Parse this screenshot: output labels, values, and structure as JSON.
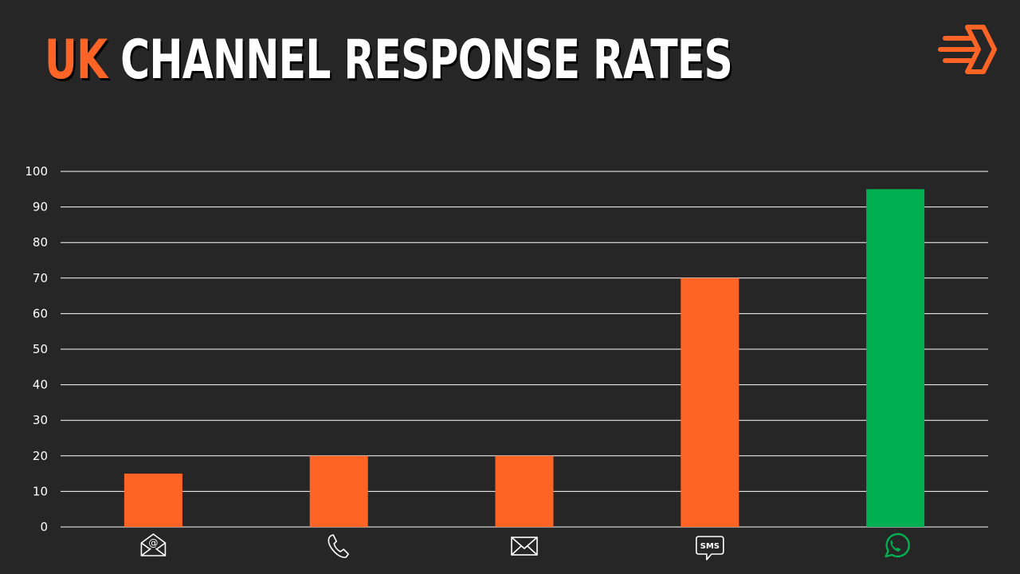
{
  "title": {
    "highlight": "UK",
    "text": "CHANNEL RESPONSE RATES"
  },
  "logo": {
    "icon": "brand-arrow-logo-icon"
  },
  "colors": {
    "background": "#262626",
    "accent": "#ff6427",
    "highlight": "#00b050",
    "text": "#ffffff"
  },
  "chart_data": {
    "type": "bar",
    "categories": [
      "email",
      "phone",
      "mail",
      "SMS",
      "WhatsApp"
    ],
    "category_icons": [
      "email-at-icon",
      "phone-icon",
      "envelope-icon",
      "sms-bubble-icon",
      "whatsapp-icon"
    ],
    "icon_text": {
      "sms": "SMS"
    },
    "values": [
      15,
      20,
      20,
      70,
      95
    ],
    "bar_colors": [
      "#ff6427",
      "#ff6427",
      "#ff6427",
      "#ff6427",
      "#00b050"
    ],
    "ylim": [
      0,
      100
    ],
    "yticks": [
      "0",
      "10",
      "20",
      "30",
      "40",
      "50",
      "60",
      "70",
      "80",
      "90",
      "100"
    ],
    "grid": true,
    "legend": "none"
  }
}
